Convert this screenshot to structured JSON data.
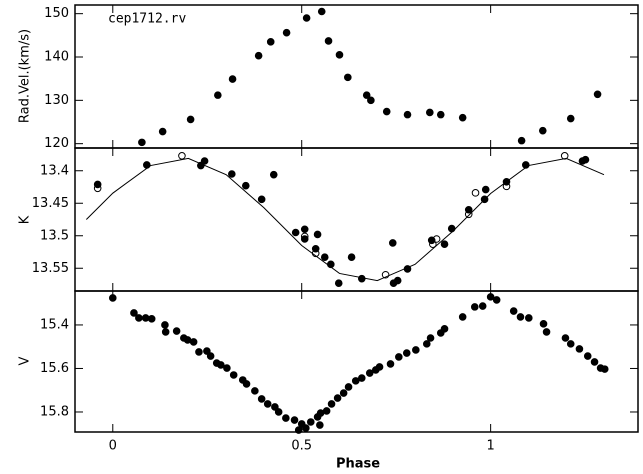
{
  "chart_data": [
    {
      "type": "scatter",
      "annotation": "cep1712.rv",
      "ylabel": "Rad.Vel.(km/s)",
      "xlim": [
        -0.1,
        1.39
      ],
      "ylim": [
        119,
        152
      ],
      "yticks": [
        120,
        130,
        140,
        150
      ],
      "invert_y": false,
      "series": [
        {
          "color": "#000000",
          "marker": "filled",
          "x": [
            0.077,
            0.132,
            0.206,
            0.278,
            0.317,
            0.386,
            0.418,
            0.46,
            0.513,
            0.553,
            0.571,
            0.6,
            0.622,
            0.672,
            0.683,
            0.725,
            0.78,
            0.839,
            0.868,
            0.926,
            1.082,
            1.138,
            1.212,
            1.283
          ],
          "values": [
            120.3,
            122.8,
            125.6,
            131.2,
            134.9,
            140.3,
            143.5,
            145.6,
            149,
            150.5,
            143.7,
            140.5,
            135.3,
            131.2,
            130,
            127.4,
            126.7,
            127.2,
            126.7,
            126,
            120.7,
            123,
            125.8,
            131.4
          ]
        }
      ]
    },
    {
      "type": "scatter",
      "ylabel": "K",
      "xlim": [
        -0.1,
        1.39
      ],
      "ylim": [
        13.365,
        13.585
      ],
      "yticks": [
        13.4,
        13.45,
        13.5,
        13.55
      ],
      "invert_y": true,
      "series": [
        {
          "color": "#000000",
          "marker": "line",
          "x": [
            -0.07,
            0,
            0.1,
            0.2,
            0.3,
            0.4,
            0.5,
            0.6,
            0.7,
            0.8,
            0.9,
            1.0,
            1.1,
            1.2,
            1.3
          ],
          "values": [
            13.475,
            13.4345,
            13.392,
            13.381,
            13.406,
            13.457,
            13.515,
            13.558,
            13.569,
            13.544,
            13.493,
            13.435,
            13.392,
            13.381,
            13.406
          ]
        },
        {
          "color": "#000000",
          "marker": "filled",
          "x": [
            -0.04,
            0.09,
            0.243,
            0.233,
            0.315,
            0.352,
            0.426,
            0.394,
            0.484,
            0.508,
            0.508,
            0.542,
            0.537,
            0.561,
            0.577,
            0.598,
            0.632,
            0.659,
            0.741,
            0.743,
            0.754,
            0.78,
            0.844,
            0.878,
            0.897,
            0.942,
            0.984,
            0.987,
            1.042,
            1.093,
            1.243,
            1.251
          ],
          "values": [
            13.421,
            13.391,
            13.385,
            13.392,
            13.405,
            13.423,
            13.406,
            13.444,
            13.495,
            13.49,
            13.505,
            13.498,
            13.52,
            13.533,
            13.544,
            13.573,
            13.533,
            13.566,
            13.511,
            13.573,
            13.569,
            13.551,
            13.507,
            13.513,
            13.489,
            13.46,
            13.444,
            13.429,
            13.417,
            13.391,
            13.385,
            13.383
          ]
        },
        {
          "color": "#000000",
          "marker": "open",
          "x": [
            -0.04,
            0.183,
            0.508,
            0.537,
            0.722,
            0.847,
            0.857,
            0.942,
            0.96,
            1.042,
            1.196
          ],
          "values": [
            13.427,
            13.377,
            13.501,
            13.527,
            13.56,
            13.513,
            13.505,
            13.467,
            13.434,
            13.424,
            13.377
          ]
        }
      ]
    },
    {
      "type": "scatter",
      "ylabel": "V",
      "xlabel": "Phase",
      "xlim": [
        -0.1,
        1.39
      ],
      "xticks": [
        0,
        0.5,
        1
      ],
      "ylim": [
        15.244,
        15.892
      ],
      "yticks": [
        15.4,
        15.6,
        15.8
      ],
      "invert_y": true,
      "series": [
        {
          "color": "#000000",
          "marker": "filled",
          "x": [
            0,
            0.056,
            0.069,
            0.087,
            0.103,
            0.138,
            0.14,
            0.169,
            0.188,
            0.198,
            0.214,
            0.228,
            0.249,
            0.259,
            0.275,
            0.286,
            0.302,
            0.32,
            0.344,
            0.354,
            0.376,
            0.394,
            0.41,
            0.429,
            0.439,
            0.458,
            0.481,
            0.5,
            0.511,
            0.524,
            0.542,
            0.55,
            0.566,
            0.579,
            0.595,
            0.611,
            0.624,
            0.643,
            0.659,
            0.68,
            0.696,
            0.706,
            0.735,
            0.757,
            0.778,
            0.802,
            0.831,
            0.841,
            0.868,
            0.878,
            0.926,
            0.958,
            0.979,
            1.0,
            1.016,
            1.061,
            1.079,
            1.101,
            1.14,
            1.148,
            1.198,
            1.212,
            1.235,
            1.257,
            1.275,
            1.291,
            1.302,
            0.492,
            0.548
          ],
          "values": [
            15.276,
            15.345,
            15.368,
            15.368,
            15.372,
            15.4,
            15.432,
            15.428,
            15.46,
            15.469,
            15.478,
            15.524,
            15.52,
            15.543,
            15.575,
            15.584,
            15.598,
            15.63,
            15.653,
            15.671,
            15.703,
            15.74,
            15.763,
            15.777,
            15.8,
            15.828,
            15.837,
            15.855,
            15.874,
            15.846,
            15.823,
            15.805,
            15.795,
            15.763,
            15.736,
            15.713,
            15.685,
            15.657,
            15.644,
            15.621,
            15.607,
            15.593,
            15.579,
            15.547,
            15.529,
            15.515,
            15.487,
            15.46,
            15.437,
            15.418,
            15.363,
            15.317,
            15.313,
            15.271,
            15.285,
            15.336,
            15.363,
            15.368,
            15.395,
            15.432,
            15.46,
            15.487,
            15.51,
            15.543,
            15.57,
            15.598,
            15.603,
            15.883,
            15.86
          ]
        }
      ]
    }
  ]
}
